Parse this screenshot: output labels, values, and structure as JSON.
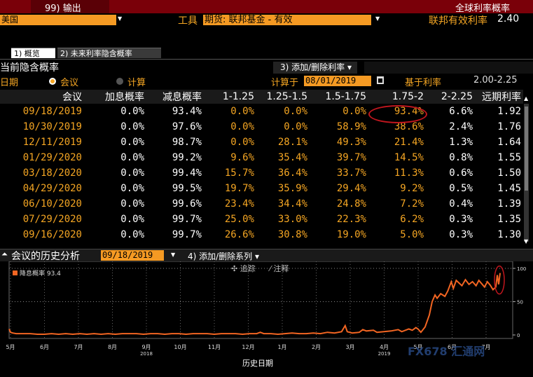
{
  "header": {
    "output_label": "99) 输出",
    "title_right": "全球利率概率"
  },
  "row2": {
    "country": "美国",
    "tool_label": "工具",
    "instrument": "期货: 联邦基金 - 有效",
    "eff_rate_label": "联邦有效利率",
    "eff_rate_value": "2.40"
  },
  "tabs": [
    {
      "label": "1) 概览"
    },
    {
      "label": "2) 未来利率隐含概率"
    }
  ],
  "section": {
    "title": "当前隐含概率",
    "add_remove_rates": "3) 添加/删除利率 ▾"
  },
  "controls": {
    "date_label": "日期",
    "meeting_radio": "会议",
    "calc_radio": "计算",
    "calc_at_label": "计算于",
    "calc_at_value": "08/01/2019",
    "base_rate_label": "基于利率",
    "base_rate_value": "2.00-2.25"
  },
  "table": {
    "headers": [
      "会议",
      "加息概率",
      "减息概率",
      "1-1.25",
      "1.25-1.5",
      "1.5-1.75",
      "1.75-2",
      "2-2.25",
      "远期利率"
    ],
    "rows": [
      [
        "09/18/2019",
        "0.0%",
        "93.4%",
        "0.0%",
        "0.0%",
        "0.0%",
        "93.4%",
        "6.6%",
        "1.92"
      ],
      [
        "10/30/2019",
        "0.0%",
        "97.6%",
        "0.0%",
        "0.0%",
        "58.9%",
        "38.6%",
        "2.4%",
        "1.76"
      ],
      [
        "12/11/2019",
        "0.0%",
        "98.7%",
        "0.0%",
        "28.1%",
        "49.3%",
        "21.4%",
        "1.3%",
        "1.64"
      ],
      [
        "01/29/2020",
        "0.0%",
        "99.2%",
        "9.6%",
        "35.4%",
        "39.7%",
        "14.5%",
        "0.8%",
        "1.55"
      ],
      [
        "03/18/2020",
        "0.0%",
        "99.4%",
        "15.7%",
        "36.4%",
        "33.7%",
        "11.3%",
        "0.6%",
        "1.50"
      ],
      [
        "04/29/2020",
        "0.0%",
        "99.5%",
        "19.7%",
        "35.9%",
        "29.4%",
        "9.2%",
        "0.5%",
        "1.45"
      ],
      [
        "06/10/2020",
        "0.0%",
        "99.6%",
        "23.4%",
        "34.4%",
        "24.8%",
        "7.2%",
        "0.4%",
        "1.39"
      ],
      [
        "07/29/2020",
        "0.0%",
        "99.7%",
        "25.0%",
        "33.0%",
        "22.3%",
        "6.2%",
        "0.3%",
        "1.35"
      ],
      [
        "09/16/2020",
        "0.0%",
        "99.7%",
        "26.6%",
        "30.8%",
        "19.0%",
        "5.0%",
        "0.3%",
        "1.30"
      ]
    ]
  },
  "history": {
    "title": "会议的历史分析",
    "date_value": "09/18/2019",
    "add_series": "4) 添加/删除系列 ▾",
    "trace": "✣ 追踪",
    "annotate": "⁄ 注释",
    "legend": "降息概率 93.4",
    "xlabel": "历史日期",
    "watermark": "FX678 汇通网"
  },
  "chart_data": {
    "type": "line",
    "series": [
      {
        "name": "降息概率",
        "color": "#f26522",
        "values": [
          [
            0,
            9
          ],
          [
            2,
            4
          ],
          [
            5,
            3
          ],
          [
            10,
            2
          ],
          [
            20,
            2
          ],
          [
            30,
            2
          ],
          [
            40,
            1
          ],
          [
            50,
            1
          ],
          [
            60,
            2
          ],
          [
            70,
            1
          ],
          [
            80,
            2
          ],
          [
            90,
            1
          ],
          [
            100,
            2
          ],
          [
            110,
            1
          ],
          [
            120,
            2
          ],
          [
            130,
            1
          ],
          [
            140,
            2
          ],
          [
            150,
            1
          ],
          [
            160,
            2
          ],
          [
            170,
            2
          ],
          [
            180,
            2
          ],
          [
            190,
            1
          ],
          [
            200,
            2
          ],
          [
            210,
            2
          ],
          [
            220,
            1
          ],
          [
            230,
            2
          ],
          [
            240,
            2
          ],
          [
            250,
            1
          ],
          [
            260,
            2
          ],
          [
            270,
            2
          ],
          [
            280,
            2
          ],
          [
            290,
            1
          ],
          [
            300,
            2
          ],
          [
            310,
            2
          ],
          [
            320,
            2
          ],
          [
            330,
            1
          ],
          [
            340,
            2
          ],
          [
            350,
            2
          ],
          [
            355,
            4
          ],
          [
            360,
            2
          ],
          [
            370,
            2
          ],
          [
            380,
            1
          ],
          [
            390,
            2
          ],
          [
            400,
            3
          ],
          [
            410,
            2
          ],
          [
            420,
            2
          ],
          [
            430,
            3
          ],
          [
            440,
            2
          ],
          [
            450,
            4
          ],
          [
            460,
            3
          ],
          [
            470,
            5
          ],
          [
            475,
            14
          ],
          [
            478,
            5
          ],
          [
            485,
            3
          ],
          [
            495,
            4
          ],
          [
            500,
            8
          ],
          [
            505,
            6
          ],
          [
            515,
            7
          ],
          [
            520,
            4
          ],
          [
            530,
            5
          ],
          [
            540,
            6
          ],
          [
            550,
            8
          ],
          [
            555,
            5
          ],
          [
            565,
            9
          ],
          [
            570,
            7
          ],
          [
            575,
            11
          ],
          [
            578,
            9
          ],
          [
            582,
            4
          ],
          [
            588,
            12
          ],
          [
            594,
            30
          ],
          [
            598,
            50
          ],
          [
            602,
            60
          ],
          [
            605,
            55
          ],
          [
            610,
            62
          ],
          [
            616,
            58
          ],
          [
            620,
            66
          ],
          [
            625,
            80
          ],
          [
            628,
            70
          ],
          [
            632,
            82
          ],
          [
            636,
            78
          ],
          [
            640,
            74
          ],
          [
            645,
            83
          ],
          [
            650,
            76
          ],
          [
            655,
            80
          ],
          [
            660,
            74
          ],
          [
            664,
            82
          ],
          [
            668,
            77
          ],
          [
            672,
            72
          ],
          [
            676,
            80
          ],
          [
            680,
            75
          ],
          [
            684,
            68
          ],
          [
            688,
            72
          ],
          [
            690,
            90
          ],
          [
            692,
            76
          ],
          [
            694,
            93
          ]
        ]
      }
    ],
    "x_ticks": [
      "5月",
      "6月",
      "7月",
      "8月",
      "9月",
      "10月",
      "11月",
      "12月",
      "1月",
      "2月",
      "3月",
      "4月",
      "5月",
      "6月",
      "7月"
    ],
    "x_years": [
      {
        "label": "2018"
      },
      {
        "label": "2019"
      }
    ],
    "y_ticks": [
      "100",
      "50",
      "0"
    ],
    "ylim": [
      0,
      100
    ]
  }
}
